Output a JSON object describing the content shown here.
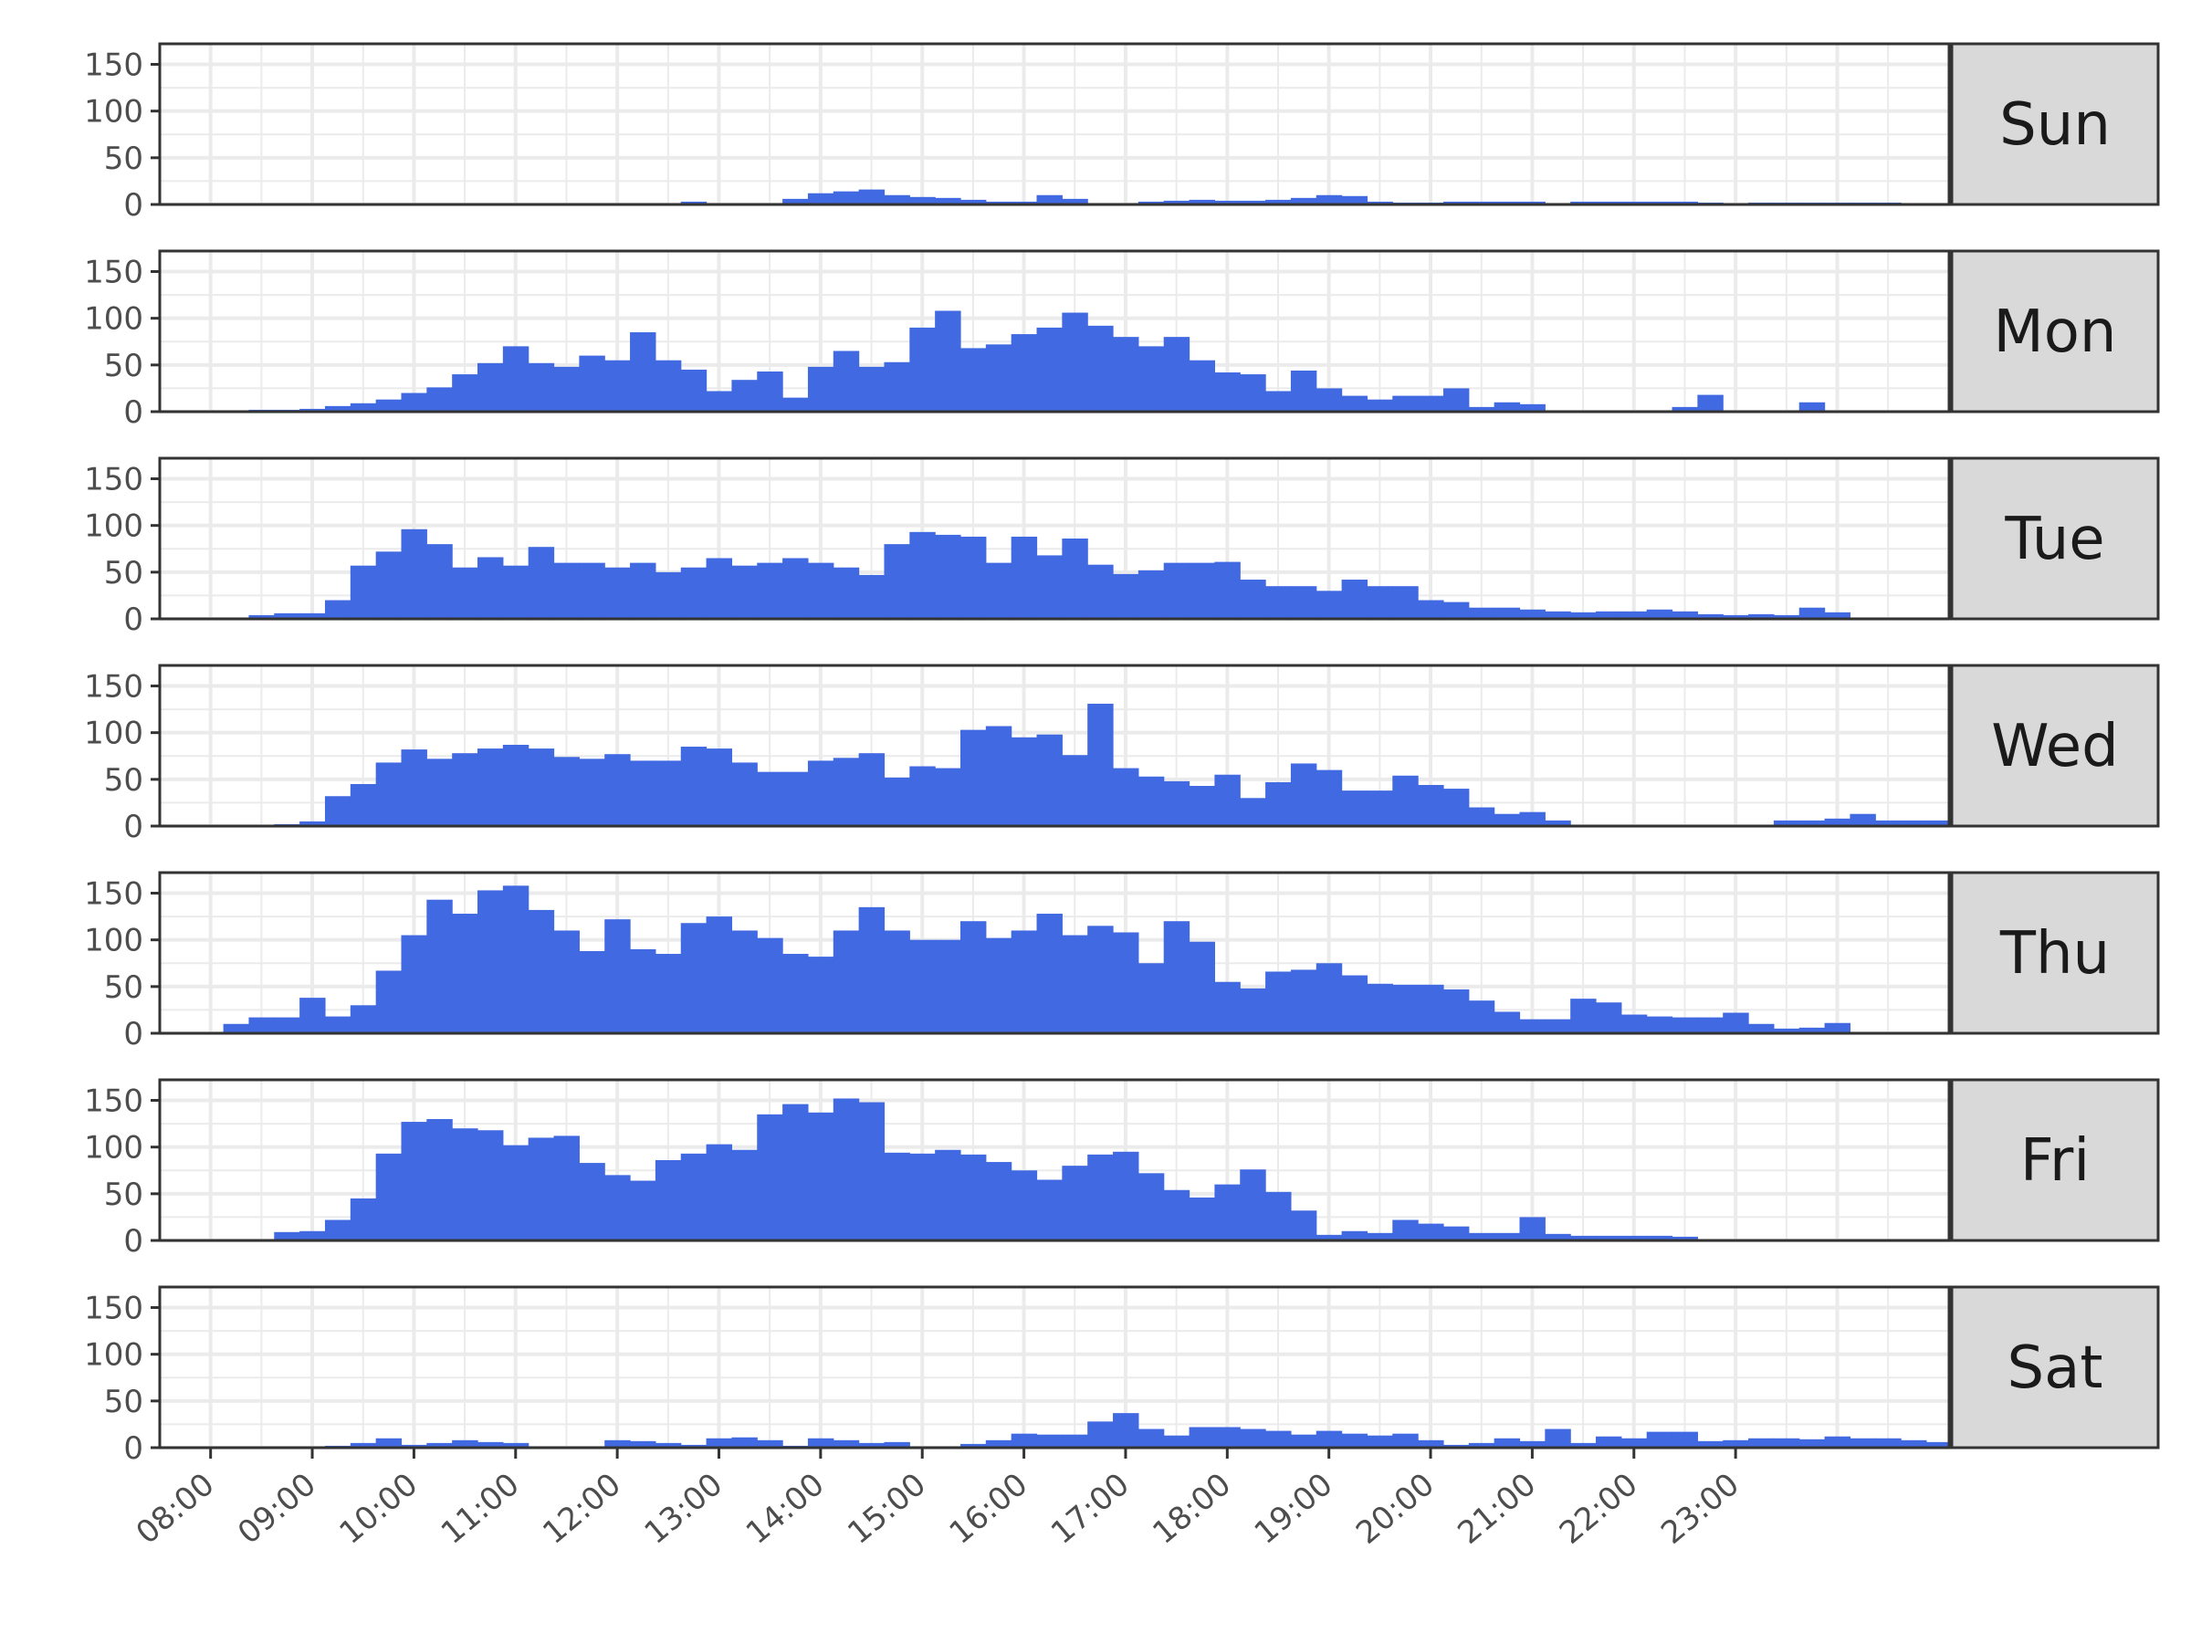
{
  "chart_data": {
    "type": "bar",
    "layout": "facet-rows",
    "x_unit": "hour",
    "xlim": [
      7.5,
      25.1
    ],
    "ylim": [
      0,
      172
    ],
    "y_ticks": [
      0,
      50,
      100,
      150
    ],
    "x_ticks": [
      {
        "value": 8,
        "label": "08:00"
      },
      {
        "value": 9,
        "label": "09:00"
      },
      {
        "value": 10,
        "label": "10:00"
      },
      {
        "value": 11,
        "label": "11:00"
      },
      {
        "value": 12,
        "label": "12:00"
      },
      {
        "value": 13,
        "label": "13:00"
      },
      {
        "value": 14,
        "label": "14:00"
      },
      {
        "value": 15,
        "label": "15:00"
      },
      {
        "value": 16,
        "label": "16:00"
      },
      {
        "value": 17,
        "label": "17:00"
      },
      {
        "value": 18,
        "label": "18:00"
      },
      {
        "value": 19,
        "label": "19:00"
      },
      {
        "value": 20,
        "label": "20:00"
      },
      {
        "value": 21,
        "label": "21:00"
      },
      {
        "value": 22,
        "label": "22:00"
      },
      {
        "value": 23,
        "label": "23:00"
      }
    ],
    "bin_width_hours": 0.25,
    "first_bin_start": 7.875,
    "fill_color": "#4169e1",
    "strip_fill": "#d9d9d9",
    "grid_color": "#ebebeb",
    "border_color": "#333333",
    "title": "",
    "xlabel": "",
    "ylabel": "",
    "facets": [
      {
        "label": "Sun",
        "values": [
          0,
          0,
          0,
          0,
          0,
          0,
          0,
          0,
          0,
          0,
          0,
          0,
          0,
          0,
          0,
          0,
          0,
          0,
          0,
          3,
          1,
          0,
          1,
          6,
          12,
          14,
          16,
          10,
          8,
          7,
          5,
          3,
          3,
          10,
          6,
          1,
          0,
          3,
          4,
          5,
          4,
          4,
          5,
          7,
          10,
          9,
          3,
          2,
          2,
          3,
          3,
          3,
          3,
          1,
          3,
          3,
          3,
          3,
          3,
          2,
          0,
          2,
          2,
          2,
          2,
          2,
          2,
          1,
          1,
          0,
          0,
          0,
          0,
          0,
          0,
          0,
          0,
          0,
          0,
          0,
          0,
          0,
          0,
          0,
          0,
          0,
          0,
          0,
          0,
          0
        ]
      },
      {
        "label": "Mon",
        "values": [
          0,
          1,
          2,
          2,
          3,
          6,
          9,
          13,
          20,
          26,
          40,
          52,
          70,
          52,
          48,
          60,
          55,
          85,
          55,
          45,
          22,
          34,
          43,
          15,
          48,
          65,
          48,
          53,
          90,
          108,
          68,
          72,
          83,
          90,
          106,
          92,
          80,
          70,
          80,
          55,
          42,
          40,
          22,
          44,
          25,
          17,
          13,
          17,
          17,
          25,
          5,
          10,
          8,
          0,
          0,
          0,
          0,
          0,
          5,
          18,
          1,
          0,
          0,
          10,
          0,
          0,
          0,
          0,
          0,
          0,
          0,
          0,
          0,
          0,
          0,
          0,
          0,
          0,
          0,
          0,
          0,
          0,
          0,
          0,
          0,
          0,
          0,
          0,
          0,
          0
        ]
      },
      {
        "label": "Tue",
        "values": [
          0,
          1,
          4,
          6,
          6,
          20,
          57,
          72,
          96,
          80,
          55,
          66,
          57,
          77,
          60,
          60,
          55,
          60,
          50,
          55,
          65,
          57,
          60,
          65,
          60,
          55,
          47,
          80,
          93,
          90,
          88,
          60,
          88,
          68,
          86,
          58,
          48,
          52,
          60,
          60,
          61,
          42,
          35,
          35,
          30,
          42,
          35,
          35,
          20,
          18,
          12,
          12,
          10,
          8,
          7,
          8,
          8,
          10,
          8,
          5,
          4,
          5,
          4,
          12,
          7,
          0,
          0,
          0,
          0,
          0,
          0,
          0,
          0,
          0,
          0,
          0,
          0,
          0,
          0,
          0,
          0,
          0,
          0,
          0,
          0,
          0,
          0,
          0,
          0,
          0
        ]
      },
      {
        "label": "Wed",
        "values": [
          0,
          1,
          0,
          2,
          5,
          32,
          45,
          68,
          82,
          72,
          78,
          83,
          87,
          83,
          74,
          72,
          77,
          70,
          70,
          85,
          83,
          68,
          58,
          58,
          70,
          73,
          78,
          52,
          64,
          62,
          103,
          107,
          95,
          98,
          76,
          131,
          62,
          53,
          48,
          43,
          55,
          30,
          47,
          67,
          60,
          38,
          38,
          54,
          44,
          40,
          20,
          13,
          15,
          6,
          0,
          0,
          0,
          0,
          0,
          0,
          0,
          1,
          6,
          6,
          8,
          13,
          6,
          6,
          6,
          0,
          0,
          0,
          0,
          0,
          0,
          0,
          0,
          0,
          0,
          0,
          0,
          0,
          0,
          0,
          0,
          0,
          0,
          0,
          0,
          0
        ]
      },
      {
        "label": "Thu",
        "values": [
          0,
          10,
          17,
          17,
          38,
          18,
          30,
          67,
          105,
          143,
          128,
          153,
          158,
          132,
          110,
          88,
          122,
          90,
          85,
          118,
          125,
          110,
          102,
          85,
          82,
          110,
          135,
          110,
          100,
          100,
          120,
          102,
          110,
          128,
          105,
          115,
          108,
          75,
          120,
          98,
          55,
          48,
          66,
          68,
          75,
          62,
          53,
          52,
          52,
          47,
          35,
          23,
          15,
          15,
          37,
          33,
          20,
          18,
          17,
          17,
          22,
          10,
          5,
          6,
          11,
          0,
          0,
          0,
          0,
          0,
          0,
          0,
          0,
          0,
          0,
          0,
          0,
          0,
          0,
          0,
          0,
          0,
          0,
          0,
          0,
          0,
          0,
          0,
          0,
          0
        ]
      },
      {
        "label": "Fri",
        "values": [
          0,
          1,
          0,
          9,
          10,
          22,
          45,
          93,
          127,
          130,
          120,
          118,
          102,
          110,
          112,
          83,
          70,
          64,
          86,
          93,
          103,
          97,
          135,
          146,
          137,
          152,
          148,
          94,
          93,
          97,
          92,
          84,
          75,
          65,
          80,
          92,
          95,
          72,
          54,
          46,
          60,
          76,
          52,
          32,
          6,
          10,
          8,
          22,
          18,
          15,
          8,
          8,
          25,
          7,
          5,
          5,
          5,
          5,
          4,
          0,
          0,
          0,
          0,
          0,
          0,
          0,
          0,
          0,
          0,
          0,
          0,
          0,
          0,
          0,
          0,
          0,
          0,
          0,
          0,
          0,
          0,
          0,
          0,
          0,
          0,
          0,
          0,
          0,
          0,
          0
        ]
      },
      {
        "label": "Sat",
        "values": [
          0,
          0,
          0,
          1,
          0,
          2,
          5,
          10,
          3,
          5,
          8,
          6,
          5,
          0,
          0,
          0,
          8,
          7,
          5,
          3,
          10,
          11,
          8,
          2,
          10,
          8,
          5,
          6,
          0,
          0,
          4,
          8,
          15,
          14,
          14,
          28,
          37,
          20,
          13,
          22,
          22,
          20,
          18,
          14,
          18,
          15,
          13,
          15,
          8,
          3,
          5,
          10,
          7,
          20,
          5,
          12,
          10,
          17,
          17,
          7,
          8,
          10,
          10,
          9,
          12,
          10,
          10,
          8,
          6,
          0,
          0,
          0,
          0,
          0,
          0,
          0,
          0,
          0,
          0,
          0,
          0,
          0,
          0,
          0,
          0,
          0,
          0,
          0,
          0,
          0
        ]
      }
    ]
  }
}
